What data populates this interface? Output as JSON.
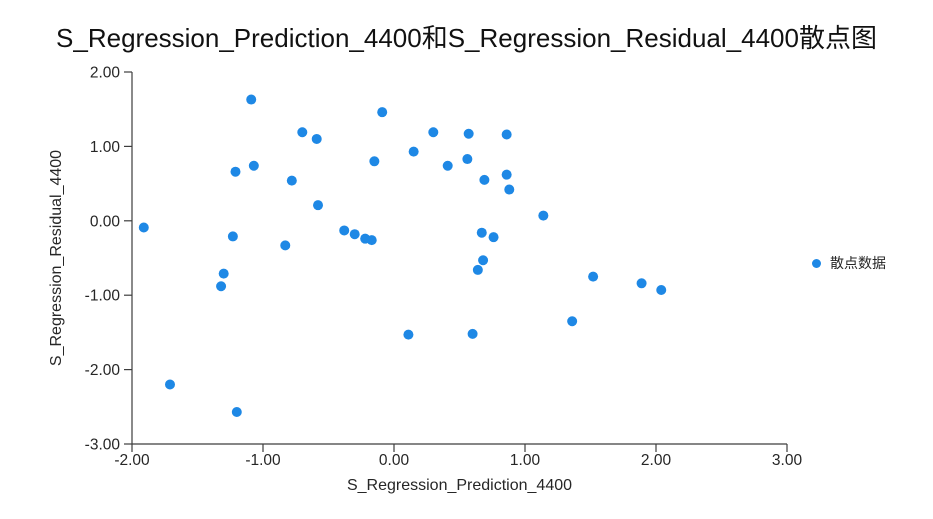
{
  "chart_data": {
    "type": "scatter",
    "title": "S_Regression_Prediction_4400和S_Regression_Residual_4400散点图",
    "xlabel": "S_Regression_Prediction_4400",
    "ylabel": "S_Regression_Residual_4400",
    "xlim": [
      -2.0,
      3.0
    ],
    "ylim": [
      -3.0,
      2.0
    ],
    "x_ticks": [
      "-2.00",
      "-1.00",
      "0.00",
      "1.00",
      "2.00",
      "3.00"
    ],
    "x_tick_values": [
      -2,
      -1,
      0,
      1,
      2,
      3
    ],
    "y_ticks": [
      "2.00",
      "1.00",
      "0.00",
      "-1.00",
      "-2.00",
      "-3.00"
    ],
    "y_tick_values": [
      2,
      1,
      0,
      -1,
      -2,
      -3
    ],
    "grid": false,
    "legend_position": "right",
    "legend": [
      {
        "label": "散点数据",
        "color": "#1E88E5"
      }
    ],
    "series": [
      {
        "name": "散点数据",
        "color": "#1E88E5",
        "points": [
          [
            -1.91,
            -0.09
          ],
          [
            -1.71,
            -2.2
          ],
          [
            -1.32,
            -0.88
          ],
          [
            -1.3,
            -0.71
          ],
          [
            -1.23,
            -0.21
          ],
          [
            -1.21,
            0.66
          ],
          [
            -1.2,
            -2.57
          ],
          [
            -1.09,
            1.63
          ],
          [
            -1.07,
            0.74
          ],
          [
            -0.83,
            -0.33
          ],
          [
            -0.78,
            0.54
          ],
          [
            -0.7,
            1.19
          ],
          [
            -0.59,
            1.1
          ],
          [
            -0.58,
            0.21
          ],
          [
            -0.38,
            -0.13
          ],
          [
            -0.3,
            -0.18
          ],
          [
            -0.22,
            -0.24
          ],
          [
            -0.17,
            -0.26
          ],
          [
            -0.15,
            0.8
          ],
          [
            -0.09,
            1.46
          ],
          [
            0.11,
            -1.53
          ],
          [
            0.15,
            0.93
          ],
          [
            0.3,
            1.19
          ],
          [
            0.41,
            0.74
          ],
          [
            0.56,
            0.83
          ],
          [
            0.57,
            1.17
          ],
          [
            0.6,
            -1.52
          ],
          [
            0.64,
            -0.66
          ],
          [
            0.67,
            -0.16
          ],
          [
            0.68,
            -0.53
          ],
          [
            0.69,
            0.55
          ],
          [
            0.76,
            -0.22
          ],
          [
            0.86,
            0.62
          ],
          [
            0.86,
            1.16
          ],
          [
            0.88,
            0.42
          ],
          [
            1.14,
            0.07
          ],
          [
            1.36,
            -1.35
          ],
          [
            1.52,
            -0.75
          ],
          [
            1.89,
            -0.84
          ],
          [
            2.04,
            -0.93
          ]
        ]
      }
    ],
    "colors": {
      "point": "#1E88E5",
      "axis": "#3d3d3d",
      "text": "#262626",
      "background": "#ffffff"
    }
  }
}
